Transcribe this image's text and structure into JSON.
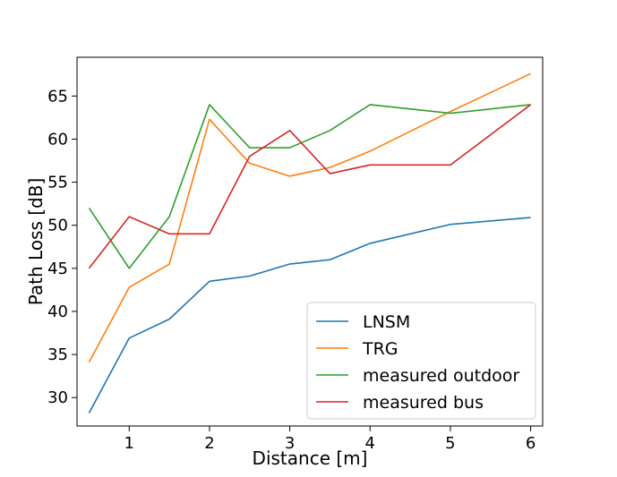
{
  "chart_data": {
    "type": "line",
    "xlabel": "Distance [m]",
    "ylabel": "Path Loss [dB]",
    "xlim": [
      0.35,
      6.15
    ],
    "ylim": [
      26.7,
      69.5
    ],
    "xticks": [
      1,
      2,
      3,
      4,
      5,
      6
    ],
    "yticks": [
      30,
      35,
      40,
      45,
      50,
      55,
      60,
      65
    ],
    "grid": false,
    "legend_position": "lower-right",
    "x": [
      0.5,
      1.0,
      1.5,
      2.0,
      2.5,
      3.0,
      3.5,
      4.0,
      5.0,
      6.0
    ],
    "series": [
      {
        "name": "LNSM",
        "color": "#1f77b4",
        "values": [
          28.2,
          36.9,
          39.1,
          43.5,
          44.1,
          45.5,
          46.0,
          47.9,
          50.1,
          50.9
        ]
      },
      {
        "name": "TRG",
        "color": "#ff7f0e",
        "values": [
          34.1,
          42.8,
          45.5,
          62.3,
          57.2,
          55.7,
          56.7,
          58.6,
          63.2,
          67.6
        ]
      },
      {
        "name": "measured outdoor",
        "color": "#2ca02c",
        "values": [
          52,
          45,
          51,
          64,
          59,
          59,
          61,
          64,
          63,
          64
        ]
      },
      {
        "name": "measured bus",
        "color": "#d62728",
        "values": [
          45,
          51,
          49,
          49,
          58,
          61,
          56,
          57,
          57,
          64
        ]
      }
    ]
  }
}
